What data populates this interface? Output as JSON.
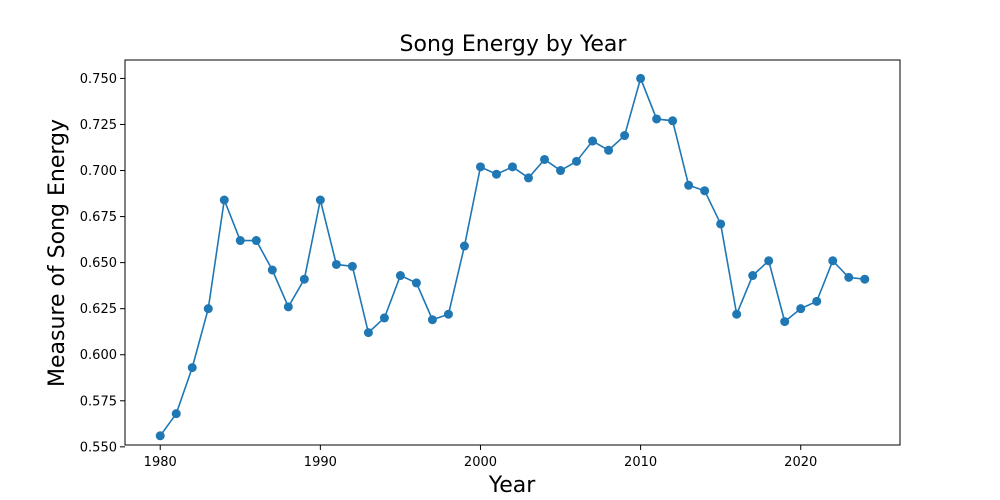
{
  "chart_data": {
    "type": "line",
    "title": "Song Energy by Year",
    "xlabel": "Year",
    "ylabel": "Measure of Song Energy",
    "xlim": [
      1977.8,
      2026.2
    ],
    "ylim": [
      0.551,
      0.76
    ],
    "xticks": [
      1980,
      1990,
      2000,
      2010,
      2020
    ],
    "yticks": [
      0.55,
      0.575,
      0.6,
      0.625,
      0.65,
      0.675,
      0.7,
      0.725,
      0.75
    ],
    "grid": false,
    "series": [
      {
        "color": "#1f77b4",
        "marker": "circle",
        "x": [
          1980,
          1981,
          1982,
          1983,
          1984,
          1985,
          1986,
          1987,
          1988,
          1989,
          1990,
          1991,
          1992,
          1993,
          1994,
          1995,
          1996,
          1997,
          1998,
          1999,
          2000,
          2001,
          2002,
          2003,
          2004,
          2005,
          2006,
          2007,
          2008,
          2009,
          2010,
          2011,
          2012,
          2013,
          2014,
          2015,
          2016,
          2017,
          2018,
          2019,
          2020,
          2021,
          2022,
          2023,
          2024
        ],
        "y": [
          0.556,
          0.568,
          0.593,
          0.625,
          0.684,
          0.662,
          0.662,
          0.646,
          0.626,
          0.641,
          0.684,
          0.649,
          0.648,
          0.612,
          0.62,
          0.643,
          0.639,
          0.619,
          0.622,
          0.659,
          0.702,
          0.698,
          0.702,
          0.696,
          0.706,
          0.7,
          0.705,
          0.716,
          0.711,
          0.719,
          0.75,
          0.728,
          0.727,
          0.692,
          0.689,
          0.671,
          0.622,
          0.643,
          0.651,
          0.618,
          0.625,
          0.629,
          0.651,
          0.642,
          0.641
        ]
      }
    ]
  }
}
